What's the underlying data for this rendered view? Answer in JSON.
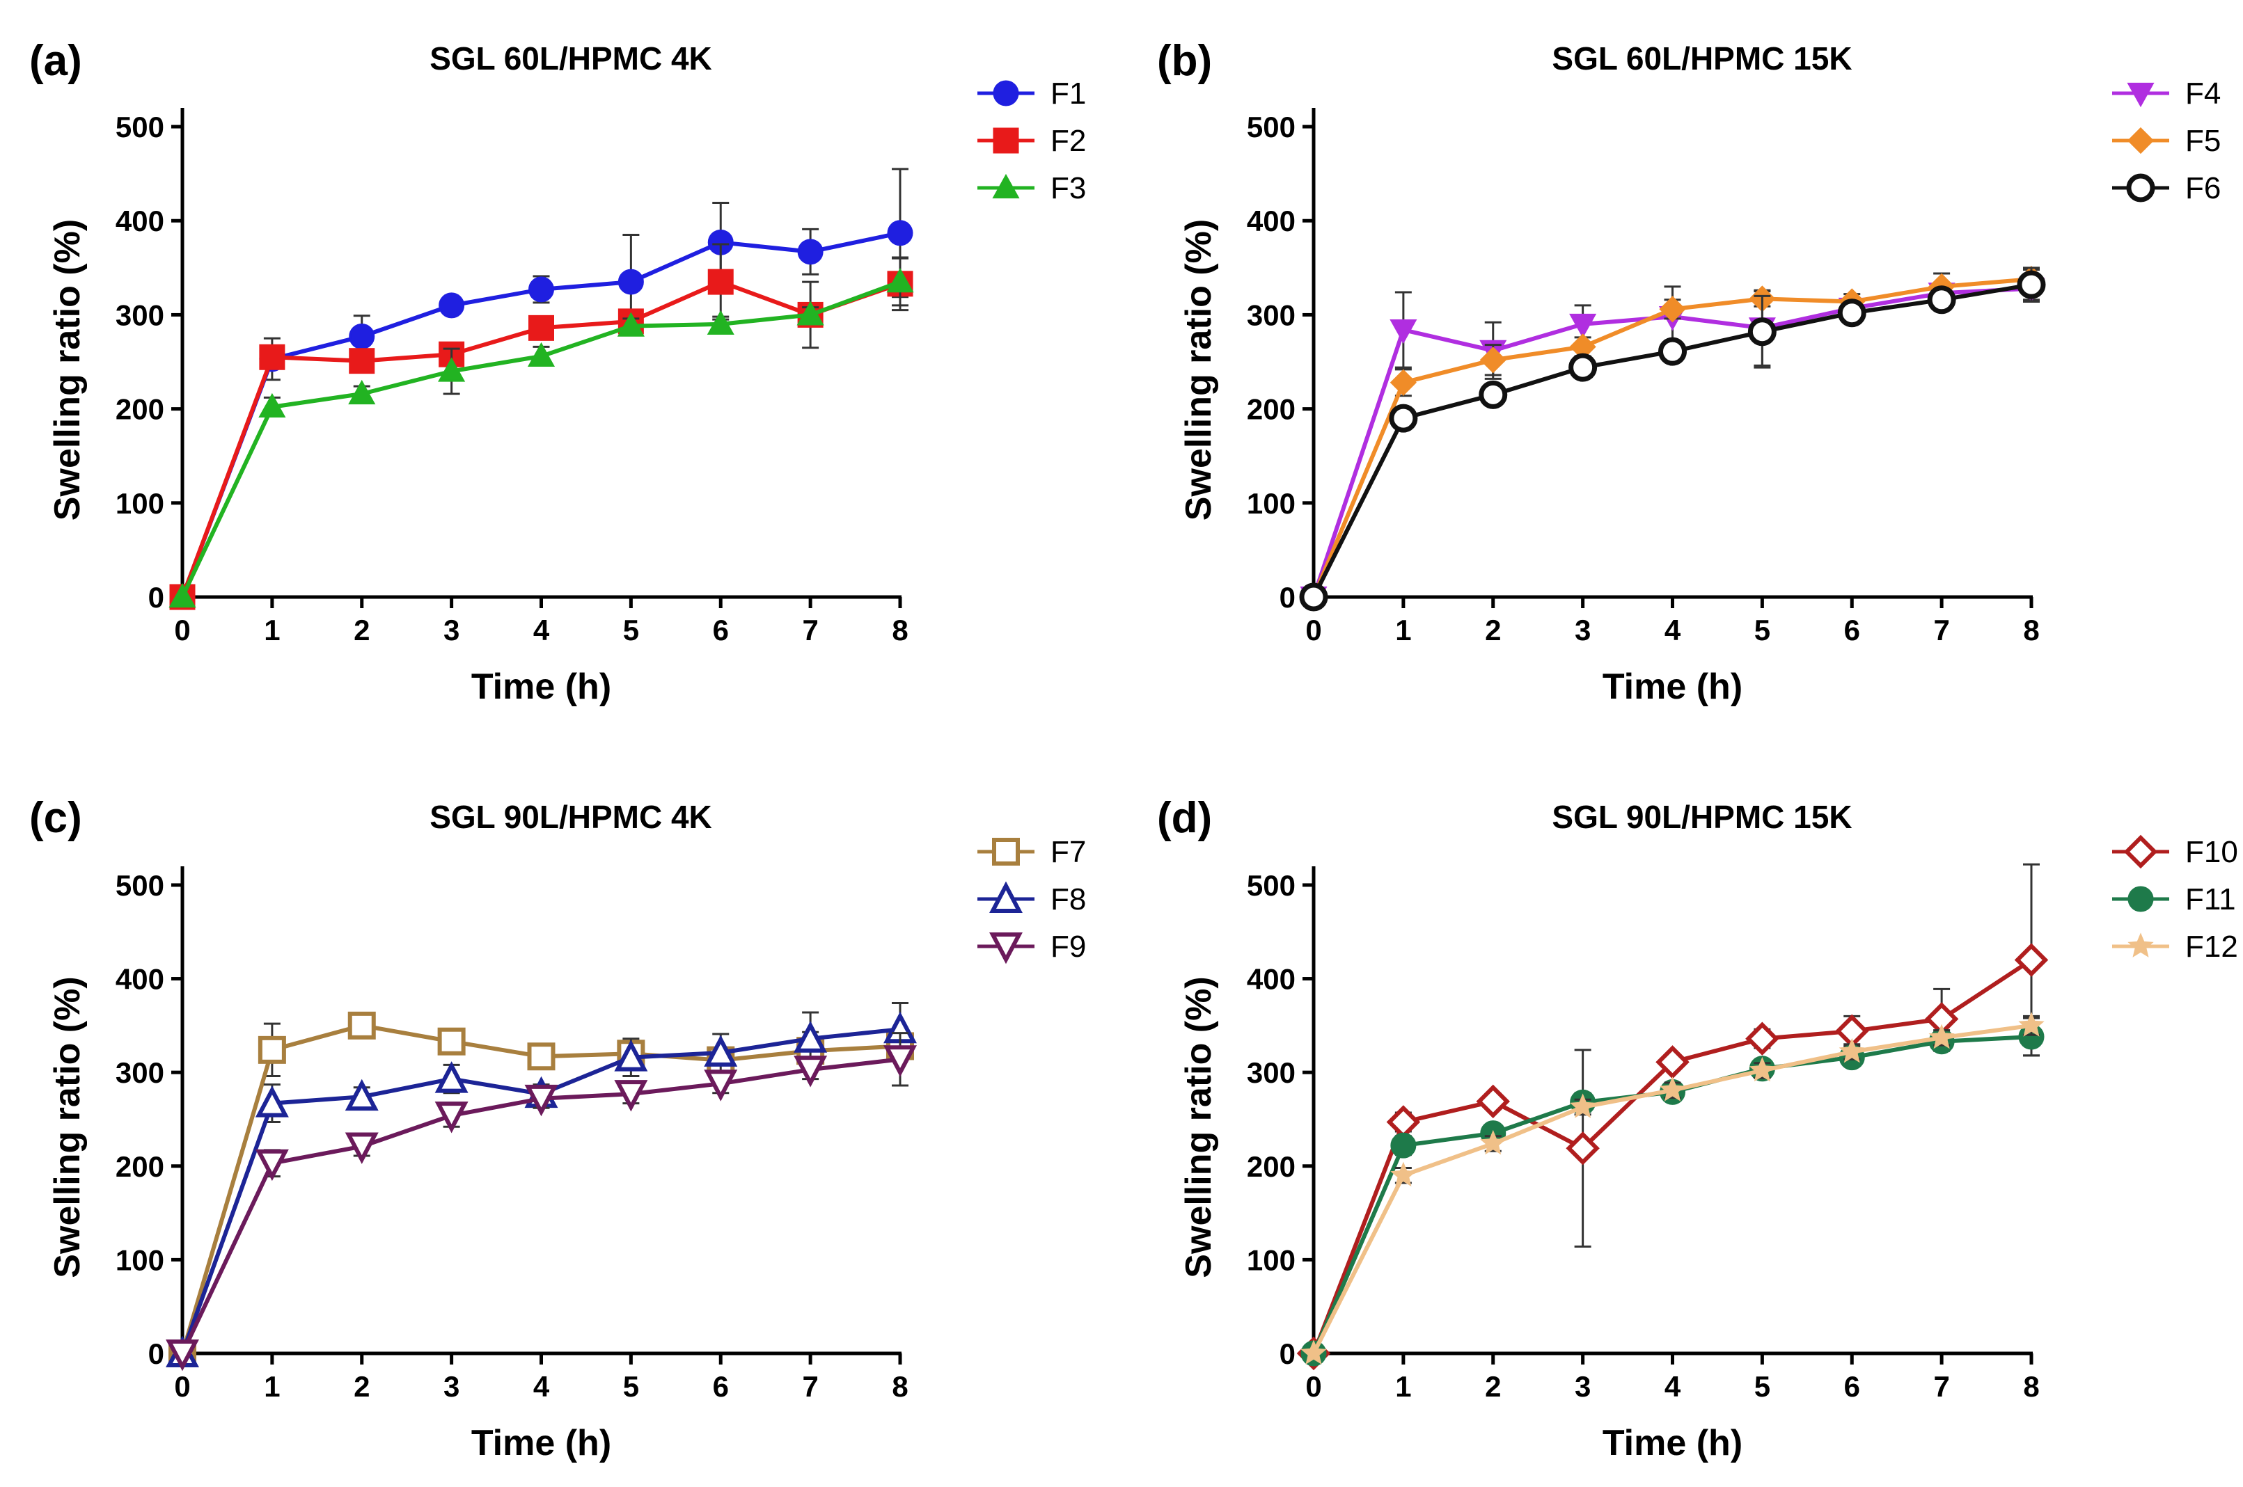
{
  "chart_data": [
    {
      "type": "line",
      "panel": "(a)",
      "title": "SGL 60L/HPMC 4K",
      "xlabel": "Time (h)",
      "ylabel": "Swelling ratio (%)",
      "x": [
        0,
        1,
        2,
        3,
        4,
        5,
        6,
        7,
        8
      ],
      "xticks": [
        "0",
        "1",
        "2",
        "3",
        "4",
        "5",
        "6",
        "7",
        "8"
      ],
      "yticks": [
        "0",
        "100",
        "200",
        "300",
        "400",
        "500"
      ],
      "xlim": [
        0,
        8
      ],
      "ylim": [
        0,
        520
      ],
      "series": [
        {
          "name": "F1",
          "color": "#1f1fe0",
          "marker": "circle",
          "values": [
            0,
            253,
            277,
            310,
            327,
            335,
            377,
            367,
            387
          ],
          "errors": [
            0,
            22,
            22,
            8,
            14,
            50,
            42,
            24,
            68
          ]
        },
        {
          "name": "F2",
          "color": "#e81a1a",
          "marker": "square",
          "values": [
            0,
            255,
            251,
            258,
            286,
            293,
            335,
            300,
            333
          ],
          "errors": [
            0,
            10,
            8,
            10,
            12,
            10,
            40,
            35,
            28
          ]
        },
        {
          "name": "F3",
          "color": "#22b322",
          "marker": "triangle-up",
          "values": [
            0,
            202,
            216,
            240,
            256,
            288,
            290,
            300,
            335
          ],
          "errors": [
            0,
            10,
            8,
            24,
            10,
            8,
            8,
            8,
            25
          ]
        }
      ]
    },
    {
      "type": "line",
      "panel": "(b)",
      "title": "SGL 60L/HPMC 15K",
      "xlabel": "Time (h)",
      "ylabel": "Swelling ratio (%)",
      "x": [
        0,
        1,
        2,
        3,
        4,
        5,
        6,
        7,
        8
      ],
      "xticks": [
        "0",
        "1",
        "2",
        "3",
        "4",
        "5",
        "6",
        "7",
        "8"
      ],
      "yticks": [
        "0",
        "100",
        "200",
        "300",
        "400",
        "500"
      ],
      "xlim": [
        0,
        8
      ],
      "ylim": [
        0,
        520
      ],
      "series": [
        {
          "name": "F4",
          "color": "#b02ee0",
          "marker": "triangle-down",
          "values": [
            0,
            284,
            262,
            290,
            298,
            286,
            307,
            323,
            328
          ],
          "errors": [
            0,
            40,
            30,
            20,
            32,
            40,
            8,
            10,
            12
          ]
        },
        {
          "name": "F5",
          "color": "#f08c28",
          "marker": "diamond",
          "values": [
            0,
            228,
            252,
            266,
            306,
            317,
            314,
            330,
            338
          ],
          "errors": [
            0,
            14,
            16,
            10,
            10,
            8,
            8,
            14,
            10
          ]
        },
        {
          "name": "F6",
          "color": "#111111",
          "marker": "circle-open",
          "values": [
            0,
            190,
            215,
            244,
            261,
            282,
            302,
            316,
            332
          ],
          "errors": [
            0,
            10,
            10,
            10,
            10,
            38,
            8,
            8,
            18
          ]
        }
      ]
    },
    {
      "type": "line",
      "panel": "(c)",
      "title": "SGL 90L/HPMC 4K",
      "xlabel": "Time (h)",
      "ylabel": "Swelling ratio (%)",
      "x": [
        0,
        1,
        2,
        3,
        4,
        5,
        6,
        7,
        8
      ],
      "xticks": [
        "0",
        "1",
        "2",
        "3",
        "4",
        "5",
        "6",
        "7",
        "8"
      ],
      "yticks": [
        "0",
        "100",
        "200",
        "300",
        "400",
        "500"
      ],
      "xlim": [
        0,
        8
      ],
      "ylim": [
        0,
        520
      ],
      "series": [
        {
          "name": "F7",
          "color": "#a87f3e",
          "marker": "square-open",
          "values": [
            0,
            324,
            350,
            333,
            317,
            320,
            313,
            323,
            328
          ],
          "errors": [
            0,
            28,
            6,
            8,
            8,
            12,
            12,
            20,
            12
          ]
        },
        {
          "name": "F8",
          "color": "#1c2496",
          "marker": "triangle-up-open",
          "values": [
            0,
            267,
            274,
            293,
            277,
            316,
            321,
            336,
            346
          ],
          "errors": [
            0,
            20,
            10,
            15,
            10,
            20,
            20,
            28,
            28
          ]
        },
        {
          "name": "F9",
          "color": "#6b1a5b",
          "marker": "triangle-down-open",
          "values": [
            0,
            203,
            221,
            254,
            272,
            277,
            288,
            303,
            314
          ],
          "errors": [
            0,
            14,
            10,
            12,
            10,
            10,
            10,
            10,
            28
          ]
        }
      ]
    },
    {
      "type": "line",
      "panel": "(d)",
      "title": "SGL 90L/HPMC 15K",
      "xlabel": "Time (h)",
      "ylabel": "Swelling ratio (%)",
      "x": [
        0,
        1,
        2,
        3,
        4,
        5,
        6,
        7,
        8
      ],
      "xticks": [
        "0",
        "1",
        "2",
        "3",
        "4",
        "5",
        "6",
        "7",
        "8"
      ],
      "yticks": [
        "0",
        "100",
        "200",
        "300",
        "400",
        "500"
      ],
      "xlim": [
        0,
        8
      ],
      "ylim": [
        0,
        520
      ],
      "series": [
        {
          "name": "F10",
          "color": "#b01e1e",
          "marker": "diamond-open",
          "values": [
            0,
            247,
            269,
            219,
            311,
            336,
            344,
            357,
            420
          ],
          "errors": [
            0,
            10,
            8,
            105,
            8,
            10,
            16,
            32,
            102
          ]
        },
        {
          "name": "F11",
          "color": "#1e7a4a",
          "marker": "circle",
          "values": [
            0,
            222,
            235,
            268,
            279,
            304,
            316,
            333,
            338
          ],
          "errors": [
            0,
            10,
            8,
            10,
            8,
            8,
            8,
            10,
            20
          ]
        },
        {
          "name": "F12",
          "color": "#f0c088",
          "marker": "star",
          "values": [
            0,
            190,
            224,
            263,
            281,
            302,
            322,
            337,
            350
          ],
          "errors": [
            0,
            8,
            8,
            8,
            8,
            8,
            8,
            8,
            10
          ]
        }
      ]
    }
  ]
}
